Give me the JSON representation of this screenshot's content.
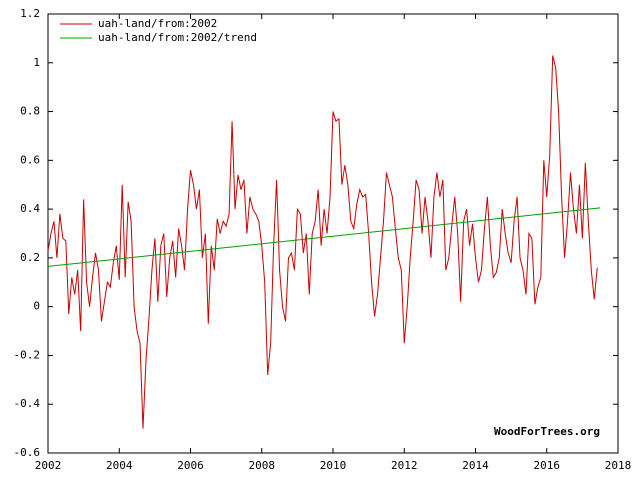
{
  "chart_data": {
    "type": "line",
    "annotation": "WoodForTrees.org",
    "xlim": [
      2002,
      2018
    ],
    "xticks": [
      2002,
      2004,
      2006,
      2008,
      2010,
      2012,
      2014,
      2016,
      2018
    ],
    "ylim": [
      -0.6,
      1.2
    ],
    "yticks": [
      -0.6,
      -0.4,
      -0.2,
      0,
      0.2,
      0.4,
      0.6,
      0.8,
      1,
      1.2
    ],
    "legend": "top-left",
    "series": [
      {
        "name": "uah-land/from:2002",
        "color": "#cc0000",
        "x": [
          2002,
          2002.083,
          2002.167,
          2002.25,
          2002.333,
          2002.417,
          2002.5,
          2002.583,
          2002.667,
          2002.75,
          2002.833,
          2002.917,
          2003,
          2003.083,
          2003.167,
          2003.25,
          2003.333,
          2003.417,
          2003.5,
          2003.583,
          2003.667,
          2003.75,
          2003.833,
          2003.917,
          2004,
          2004.083,
          2004.167,
          2004.25,
          2004.333,
          2004.417,
          2004.5,
          2004.583,
          2004.667,
          2004.75,
          2004.833,
          2004.917,
          2005,
          2005.083,
          2005.167,
          2005.25,
          2005.333,
          2005.417,
          2005.5,
          2005.583,
          2005.667,
          2005.75,
          2005.833,
          2005.917,
          2006,
          2006.083,
          2006.167,
          2006.25,
          2006.333,
          2006.417,
          2006.5,
          2006.583,
          2006.667,
          2006.75,
          2006.833,
          2006.917,
          2007,
          2007.083,
          2007.167,
          2007.25,
          2007.333,
          2007.417,
          2007.5,
          2007.583,
          2007.667,
          2007.75,
          2007.833,
          2007.917,
          2008,
          2008.083,
          2008.167,
          2008.25,
          2008.333,
          2008.417,
          2008.5,
          2008.583,
          2008.667,
          2008.75,
          2008.833,
          2008.917,
          2009,
          2009.083,
          2009.167,
          2009.25,
          2009.333,
          2009.417,
          2009.5,
          2009.583,
          2009.667,
          2009.75,
          2009.833,
          2009.917,
          2010,
          2010.083,
          2010.167,
          2010.25,
          2010.333,
          2010.417,
          2010.5,
          2010.583,
          2010.667,
          2010.75,
          2010.833,
          2010.917,
          2011,
          2011.083,
          2011.167,
          2011.25,
          2011.333,
          2011.417,
          2011.5,
          2011.583,
          2011.667,
          2011.75,
          2011.833,
          2011.917,
          2012,
          2012.083,
          2012.167,
          2012.25,
          2012.333,
          2012.417,
          2012.5,
          2012.583,
          2012.667,
          2012.75,
          2012.833,
          2012.917,
          2013,
          2013.083,
          2013.167,
          2013.25,
          2013.333,
          2013.417,
          2013.5,
          2013.583,
          2013.667,
          2013.75,
          2013.833,
          2013.917,
          2014,
          2014.083,
          2014.167,
          2014.25,
          2014.333,
          2014.417,
          2014.5,
          2014.583,
          2014.667,
          2014.75,
          2014.833,
          2014.917,
          2015,
          2015.083,
          2015.167,
          2015.25,
          2015.333,
          2015.417,
          2015.5,
          2015.583,
          2015.667,
          2015.75,
          2015.833,
          2015.917,
          2016,
          2016.083,
          2016.167,
          2016.25,
          2016.333,
          2016.417,
          2016.5,
          2016.583,
          2016.667,
          2016.75,
          2016.833,
          2016.917,
          2017,
          2017.083,
          2017.167,
          2017.25,
          2017.333,
          2017.417
        ],
        "values": [
          0.23,
          0.3,
          0.35,
          0.2,
          0.38,
          0.28,
          0.27,
          -0.03,
          0.12,
          0.05,
          0.15,
          -0.1,
          0.44,
          0.1,
          0.0,
          0.12,
          0.22,
          0.15,
          -0.06,
          0.02,
          0.1,
          0.08,
          0.18,
          0.25,
          0.11,
          0.5,
          0.12,
          0.43,
          0.35,
          0.0,
          -0.1,
          -0.15,
          -0.5,
          -0.22,
          -0.05,
          0.15,
          0.28,
          0.02,
          0.25,
          0.3,
          0.04,
          0.2,
          0.27,
          0.12,
          0.32,
          0.25,
          0.15,
          0.4,
          0.56,
          0.5,
          0.4,
          0.48,
          0.2,
          0.3,
          -0.07,
          0.25,
          0.15,
          0.36,
          0.3,
          0.35,
          0.33,
          0.38,
          0.76,
          0.4,
          0.54,
          0.48,
          0.52,
          0.3,
          0.45,
          0.4,
          0.38,
          0.35,
          0.25,
          0.1,
          -0.28,
          -0.15,
          0.25,
          0.52,
          0.15,
          0.0,
          -0.06,
          0.2,
          0.22,
          0.15,
          0.4,
          0.38,
          0.22,
          0.3,
          0.05,
          0.3,
          0.35,
          0.48,
          0.25,
          0.4,
          0.3,
          0.45,
          0.8,
          0.76,
          0.77,
          0.5,
          0.58,
          0.5,
          0.35,
          0.32,
          0.42,
          0.48,
          0.45,
          0.46,
          0.3,
          0.1,
          -0.04,
          0.05,
          0.2,
          0.35,
          0.55,
          0.5,
          0.45,
          0.32,
          0.2,
          0.15,
          -0.15,
          0.0,
          0.2,
          0.35,
          0.52,
          0.48,
          0.3,
          0.45,
          0.35,
          0.2,
          0.45,
          0.55,
          0.45,
          0.52,
          0.15,
          0.2,
          0.33,
          0.45,
          0.3,
          0.02,
          0.35,
          0.4,
          0.25,
          0.34,
          0.2,
          0.1,
          0.15,
          0.32,
          0.45,
          0.25,
          0.12,
          0.14,
          0.2,
          0.4,
          0.3,
          0.22,
          0.18,
          0.35,
          0.45,
          0.2,
          0.15,
          0.05,
          0.3,
          0.28,
          0.01,
          0.08,
          0.12,
          0.6,
          0.45,
          0.62,
          1.03,
          0.98,
          0.8,
          0.45,
          0.2,
          0.35,
          0.55,
          0.4,
          0.3,
          0.5,
          0.28,
          0.59,
          0.35,
          0.15,
          0.03,
          0.16
        ]
      },
      {
        "name": "uah-land/from:2002/trend",
        "color": "#00a000",
        "x": [
          2002,
          2017.5
        ],
        "values": [
          0.165,
          0.405
        ]
      }
    ]
  }
}
